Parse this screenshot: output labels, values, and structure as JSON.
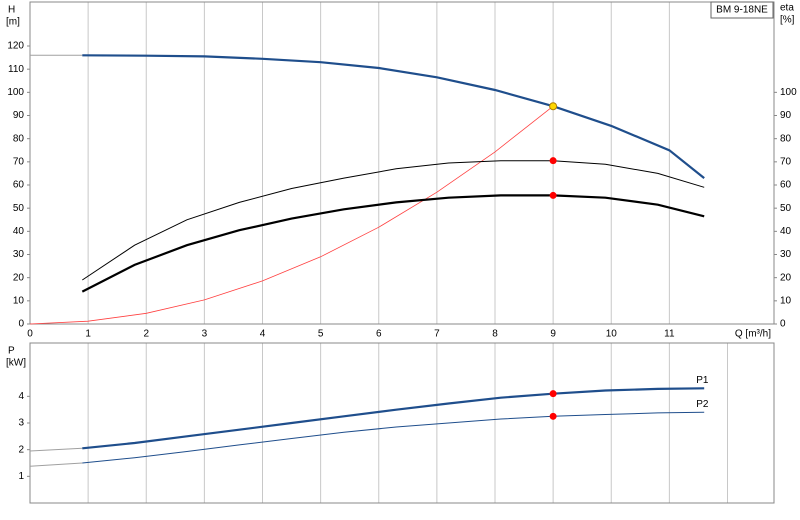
{
  "chart_data": [
    {
      "type": "line",
      "title": "BM 9-18NE",
      "ylabel": "H",
      "yunit": "[m]",
      "y2label": "eta",
      "y2unit": "[%]",
      "xlabel": "Q [m³/h]",
      "xlim": [
        0,
        12.8
      ],
      "xticks": [
        0,
        1,
        2,
        3,
        4,
        5,
        6,
        7,
        8,
        9,
        10,
        11
      ],
      "ylim": [
        0,
        139
      ],
      "yticks": [
        0,
        10,
        20,
        30,
        40,
        50,
        60,
        70,
        80,
        90,
        100,
        110,
        120
      ],
      "y2lim": [
        0,
        139
      ],
      "y2ticks": [
        0,
        10,
        20,
        30,
        40,
        50,
        60,
        70,
        80,
        90,
        100
      ],
      "grid": "x",
      "series": [
        {
          "color": "#a0a0a0",
          "line_width": 1,
          "x": [
            0,
            0.9
          ],
          "values": [
            116,
            116
          ]
        },
        {
          "color": "#1f4e8c",
          "line_width": 2.2,
          "x": [
            0.9,
            2,
            3,
            4,
            5,
            6,
            7,
            8,
            9,
            10,
            11,
            11.6
          ],
          "values": [
            116,
            115.8,
            115.5,
            114.5,
            113,
            110.5,
            106.5,
            101,
            94,
            85.5,
            75,
            63
          ]
        },
        {
          "color": "#ff4040",
          "line_width": 0.8,
          "axis": "y2",
          "x": [
            0,
            1,
            2,
            3,
            4,
            5,
            6,
            7,
            8,
            9
          ],
          "values": [
            0,
            1.2,
            4.6,
            10.4,
            18.6,
            29,
            41.8,
            56.9,
            74.3,
            94
          ]
        },
        {
          "color": "#000000",
          "line_width": 1,
          "axis": "y2",
          "x": [
            0.9,
            1.8,
            2.7,
            3.6,
            4.5,
            5.4,
            6.3,
            7.2,
            8.1,
            9,
            9.9,
            10.8,
            11.6
          ],
          "values": [
            19,
            34,
            45,
            52.5,
            58.5,
            63,
            67,
            69.5,
            70.5,
            70.5,
            69,
            65,
            59
          ]
        },
        {
          "color": "#000000",
          "line_width": 2.2,
          "axis": "y2",
          "x": [
            0.9,
            1.8,
            2.7,
            3.6,
            4.5,
            5.4,
            6.3,
            7.2,
            8.1,
            9,
            9.9,
            10.8,
            11.6
          ],
          "values": [
            14,
            25.5,
            34,
            40.5,
            45.5,
            49.5,
            52.5,
            54.5,
            55.5,
            55.5,
            54.5,
            51.5,
            46.5
          ]
        },
        {
          "marker": true,
          "color": "#ffd700",
          "axis": "y2",
          "x": [
            9
          ],
          "values": [
            94
          ]
        },
        {
          "marker": true,
          "color": "#ff0000",
          "axis": "y2",
          "x": [
            9,
            9
          ],
          "values": [
            70.5,
            55.5
          ]
        }
      ]
    },
    {
      "type": "line",
      "ylabel": "P",
      "yunit": "[kW]",
      "xlim": [
        0,
        12.8
      ],
      "xticks": [
        1,
        2,
        3,
        4,
        5,
        6,
        7,
        8,
        9,
        10,
        11,
        12
      ],
      "xtick_labels": false,
      "ylim": [
        0,
        6
      ],
      "yticks": [
        1,
        2,
        3,
        4
      ],
      "grid": "x",
      "series": [
        {
          "color": "#a0a0a0",
          "line_width": 1,
          "x": [
            0,
            0.9
          ],
          "values": [
            1.95,
            2.05
          ]
        },
        {
          "name": "P1",
          "color": "#1f4e8c",
          "line_width": 2.2,
          "x": [
            0.9,
            1.8,
            2.7,
            3.6,
            4.5,
            5.4,
            6.3,
            7.2,
            8.1,
            9,
            9.9,
            10.8,
            11.6
          ],
          "values": [
            2.05,
            2.25,
            2.5,
            2.75,
            3.0,
            3.25,
            3.5,
            3.73,
            3.95,
            4.1,
            4.22,
            4.28,
            4.3
          ]
        },
        {
          "color": "#a0a0a0",
          "line_width": 1,
          "x": [
            0,
            0.9
          ],
          "values": [
            1.38,
            1.5
          ]
        },
        {
          "name": "P2",
          "color": "#1f4e8c",
          "line_width": 1,
          "x": [
            0.9,
            1.8,
            2.7,
            3.6,
            4.5,
            5.4,
            6.3,
            7.2,
            8.1,
            9,
            9.9,
            10.8,
            11.6
          ],
          "values": [
            1.5,
            1.7,
            1.93,
            2.18,
            2.42,
            2.65,
            2.85,
            3.0,
            3.15,
            3.25,
            3.32,
            3.38,
            3.4
          ]
        },
        {
          "marker": true,
          "color": "#ff0000",
          "x": [
            9,
            9
          ],
          "values": [
            4.1,
            3.25
          ]
        }
      ]
    }
  ]
}
